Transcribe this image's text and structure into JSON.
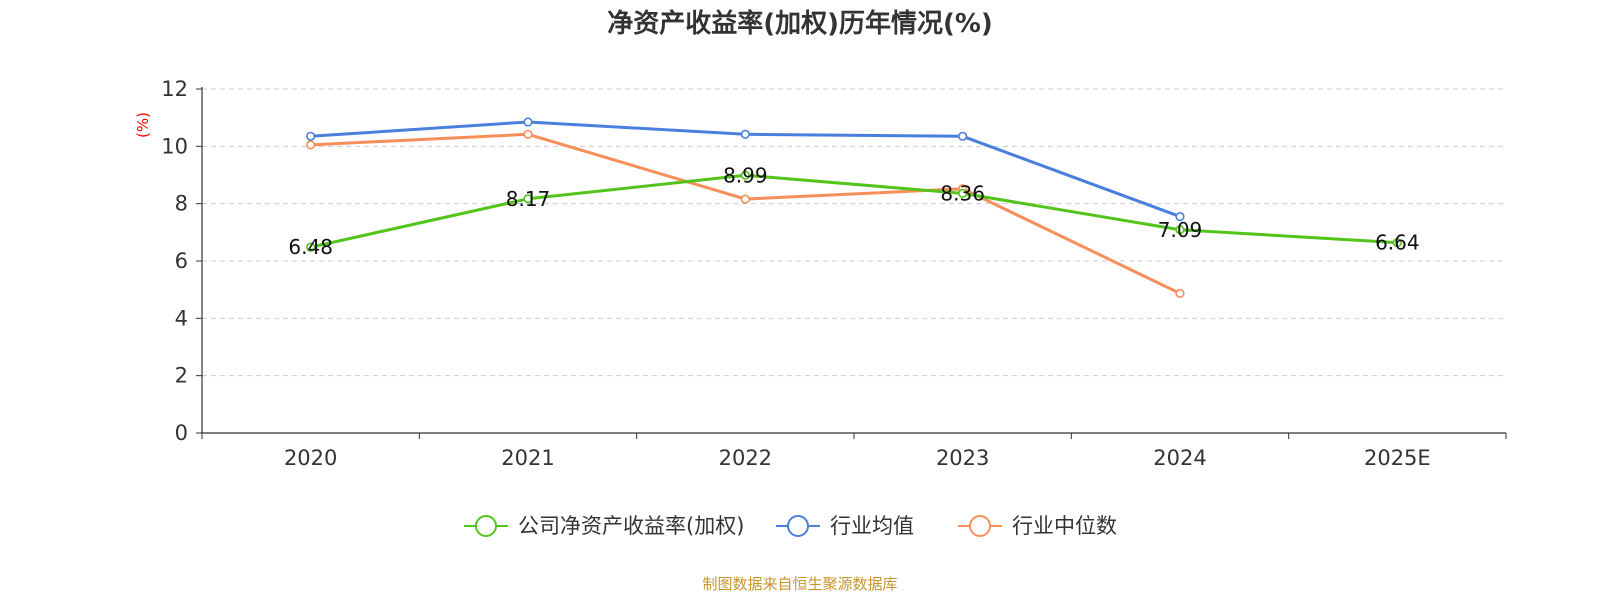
{
  "chart_data": {
    "type": "line",
    "title": "净资产收益率(加权)历年情况(%)",
    "ylabel": "(%)",
    "categories": [
      "2020",
      "2021",
      "2022",
      "2023",
      "2024",
      "2025E"
    ],
    "ylim": [
      0,
      12
    ],
    "yticks": [
      0,
      2,
      4,
      6,
      8,
      10,
      12
    ],
    "grid": true,
    "legend_position": "bottom",
    "series": [
      {
        "name": "公司净资产收益率(加权)",
        "color": "#52c41a",
        "values": [
          6.48,
          8.17,
          8.99,
          8.36,
          7.09,
          6.64
        ],
        "show_labels": true
      },
      {
        "name": "行业均值",
        "color": "#4a7fde",
        "values": [
          10.35,
          10.85,
          10.42,
          10.35,
          7.55,
          null
        ],
        "show_labels": false
      },
      {
        "name": "行业中位数",
        "color": "#f78f5a",
        "values": [
          10.05,
          10.42,
          8.16,
          8.52,
          4.87,
          null
        ],
        "show_labels": false
      }
    ]
  },
  "source_text": "制图数据来自恒生聚源数据库",
  "colors": {
    "axis": "#333333",
    "grid": "#cccccc",
    "unit_label": "#ff0000",
    "source": "#c8952c"
  }
}
